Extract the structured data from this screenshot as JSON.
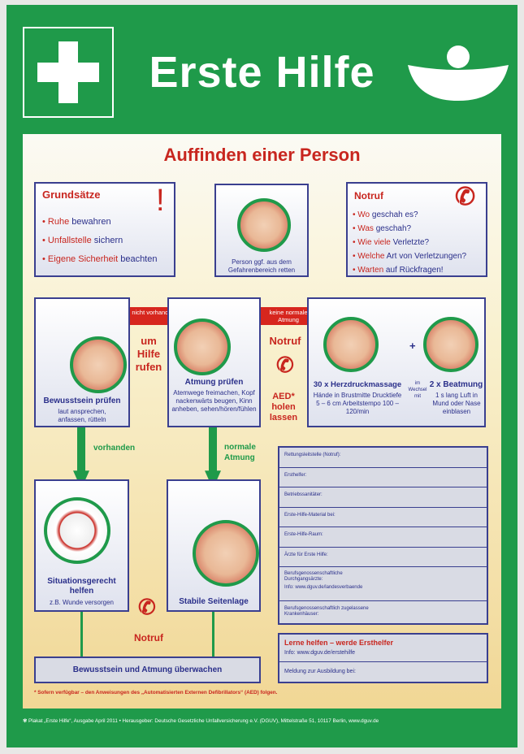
{
  "header": {
    "title": "Erste Hilfe",
    "logo": "dguv-logo",
    "icon": "first-aid-cross-icon"
  },
  "heading": "Auffinden einer Person",
  "grundsaetze": {
    "title": "Grundsätze",
    "items": [
      {
        "a": "Ruhe",
        "b": " bewahren"
      },
      {
        "a": "Unfallstelle",
        "b": " sichern"
      },
      {
        "a": "Eigene Sicherheit",
        "b": " beachten"
      }
    ]
  },
  "rescue": {
    "caption": "Person ggf. aus dem Gefahrenbereich retten"
  },
  "notruf_box": {
    "title": "Notruf",
    "items": [
      {
        "a": "Wo",
        "b": " geschah es?"
      },
      {
        "a": "Was",
        "b": " geschah?"
      },
      {
        "a": "Wie viele",
        "b": " Verletzte?"
      },
      {
        "a": "Welche",
        "b": " Art von Verletzungen?"
      },
      {
        "a": "Warten",
        "b": " auf Rückfragen!"
      }
    ]
  },
  "steps": {
    "bewusstsein": {
      "title": "Bewusstsein prüfen",
      "sub": "laut ansprechen, anfassen, rütteln"
    },
    "arrow1": "nicht vorhanden",
    "hilfe": "um Hilfe rufen",
    "atmung": {
      "title": "Atmung prüfen",
      "sub": "Atemwege freimachen, Kopf nackenwärts beugen, Kinn anheben, sehen/hören/fühlen"
    },
    "arrow2": "keine normale Atmung",
    "notruf": "Notruf",
    "aed": "AED* holen lassen",
    "herz": {
      "title": "30 x Herzdruckmassage",
      "sub": "Hände in Brustmitte Drucktiefe 5 – 6 cm Arbeitstempo 100 – 120/min"
    },
    "wechsel": "im Wechsel mit",
    "plus": "+",
    "beatmung": {
      "title": "2 x Beatmung",
      "sub": "1 s lang Luft in Mund oder Nase einblasen"
    },
    "vorhanden": "vorhanden",
    "normal": "normale Atmung",
    "situation": {
      "title": "Situationsgerecht helfen",
      "sub": "z.B. Wunde versorgen"
    },
    "seitenlage": {
      "title": "Stabile Seitenlage"
    },
    "notruf2": "Notruf",
    "ueberwachen": "Bewusstsein und Atmung überwachen"
  },
  "form": {
    "rows": [
      "Rettungsleitstelle (Notruf):",
      "Ersthelfer:",
      "Betriebssanitäter:",
      "Erste-Hilfe-Material bei:",
      "Erste-Hilfe-Raum:",
      "Ärzte für Erste Hilfe:",
      "Berufsgenossenschaftliche Durchgangsärzte:",
      "Berufsgenossenschaftlich zugelassene Krankenhäuser:"
    ],
    "info": "Info: www.dguv.de/landesverbaende"
  },
  "learn": {
    "title": "Lerne helfen – werde Ersthelfer",
    "info": "Info: www.dguv.de/erstehilfe",
    "meldung": "Meldung zur Ausbildung bei:"
  },
  "footnote": "* Sofern verfügbar – den Anweisungen des „Automatisierten Externen Defibrillators“ (AED) folgen.",
  "footer": "Plakat „Erste Hilfe“, Ausgabe April 2011 • Herausgeber: Deutsche Gesetzliche Unfallversicherung e.V. (DGUV), Mittelstraße 51, 10117 Berlin, www.dguv.de",
  "colors": {
    "green": "#1f9a4a",
    "red": "#c8261f",
    "blue": "#2a2f8a"
  }
}
